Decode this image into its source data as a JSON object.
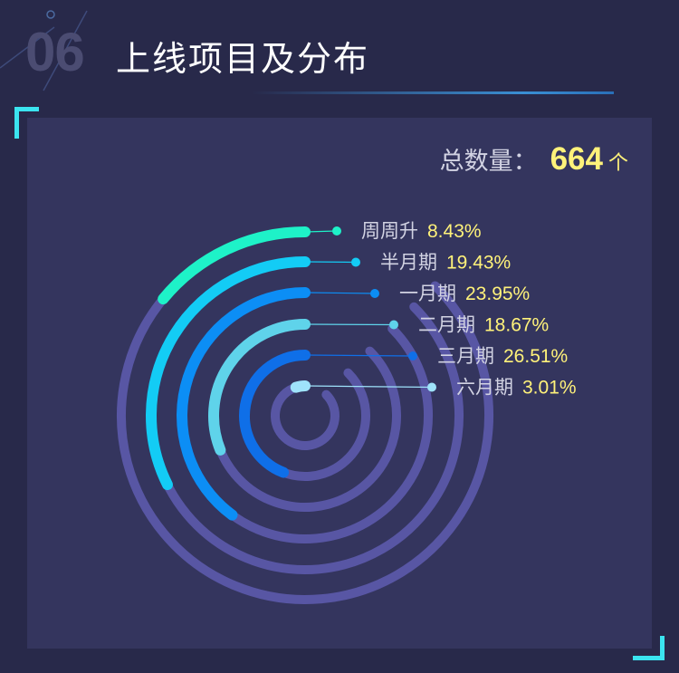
{
  "header": {
    "number": "06",
    "title": "上线项目及分布"
  },
  "summary": {
    "label": "总数量：",
    "value": "664",
    "unit": "个"
  },
  "chart_data": {
    "type": "radial-bar",
    "categories": [
      "周周升",
      "半月期",
      "一月期",
      "二月期",
      "三月期",
      "六月期"
    ],
    "values": [
      8.43,
      19.43,
      23.95,
      18.67,
      26.51,
      3.01
    ],
    "value_labels": [
      "8.43%",
      "19.43%",
      "23.95%",
      "18.67%",
      "26.51%",
      "3.01%"
    ],
    "unit": "%",
    "colors": [
      "#1ef2c8",
      "#13ccf5",
      "#0c8ef5",
      "#5fd3ea",
      "#0f6fe8",
      "#9fe3fb"
    ],
    "track_color": "#5856a4",
    "max_value": 60
  }
}
